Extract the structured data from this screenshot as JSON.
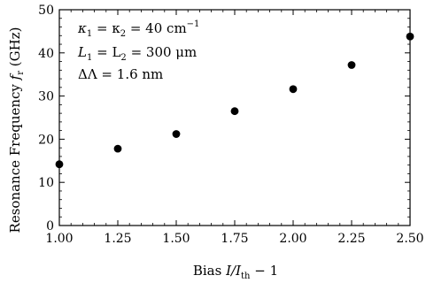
{
  "chart_data": {
    "type": "scatter",
    "title": "",
    "xlabel": "Bias I/I_th − 1",
    "xlabel_parts": {
      "prefix": "Bias ",
      "var": "I/I",
      "sub": "th",
      "suffix": " − 1"
    },
    "ylabel": "Resonance Frequency f_r (GHz)",
    "ylabel_parts": {
      "prefix": "Resonance Frequency ",
      "var": "f",
      "sub": "r",
      "suffix": " (GHz)"
    },
    "xlim": [
      1.0,
      2.5
    ],
    "ylim": [
      0,
      50
    ],
    "xticks": [
      "1.00",
      "1.25",
      "1.50",
      "1.75",
      "2.00",
      "2.25",
      "2.50"
    ],
    "yticks": [
      "0",
      "10",
      "20",
      "30",
      "40",
      "50"
    ],
    "grid": false,
    "legend": "none",
    "marker_color": "#000000",
    "series": [
      {
        "x": [
          1.0,
          1.25,
          1.5,
          1.75,
          2.0,
          2.25,
          2.5
        ],
        "y": [
          14.2,
          17.8,
          21.2,
          26.5,
          31.6,
          37.2,
          43.8
        ]
      }
    ],
    "annotations": {
      "line1": {
        "pre": "κ",
        "sub1": "1",
        "mid": " = κ",
        "sub2": "2",
        "post": " = 40 cm",
        "sup": "−1"
      },
      "line2": {
        "pre": "L",
        "sub1": "1",
        "mid": " = L",
        "sub2": "2",
        "post": " = 300 μm"
      },
      "line3": {
        "text": "ΔΛ = 1.6 nm"
      }
    }
  }
}
